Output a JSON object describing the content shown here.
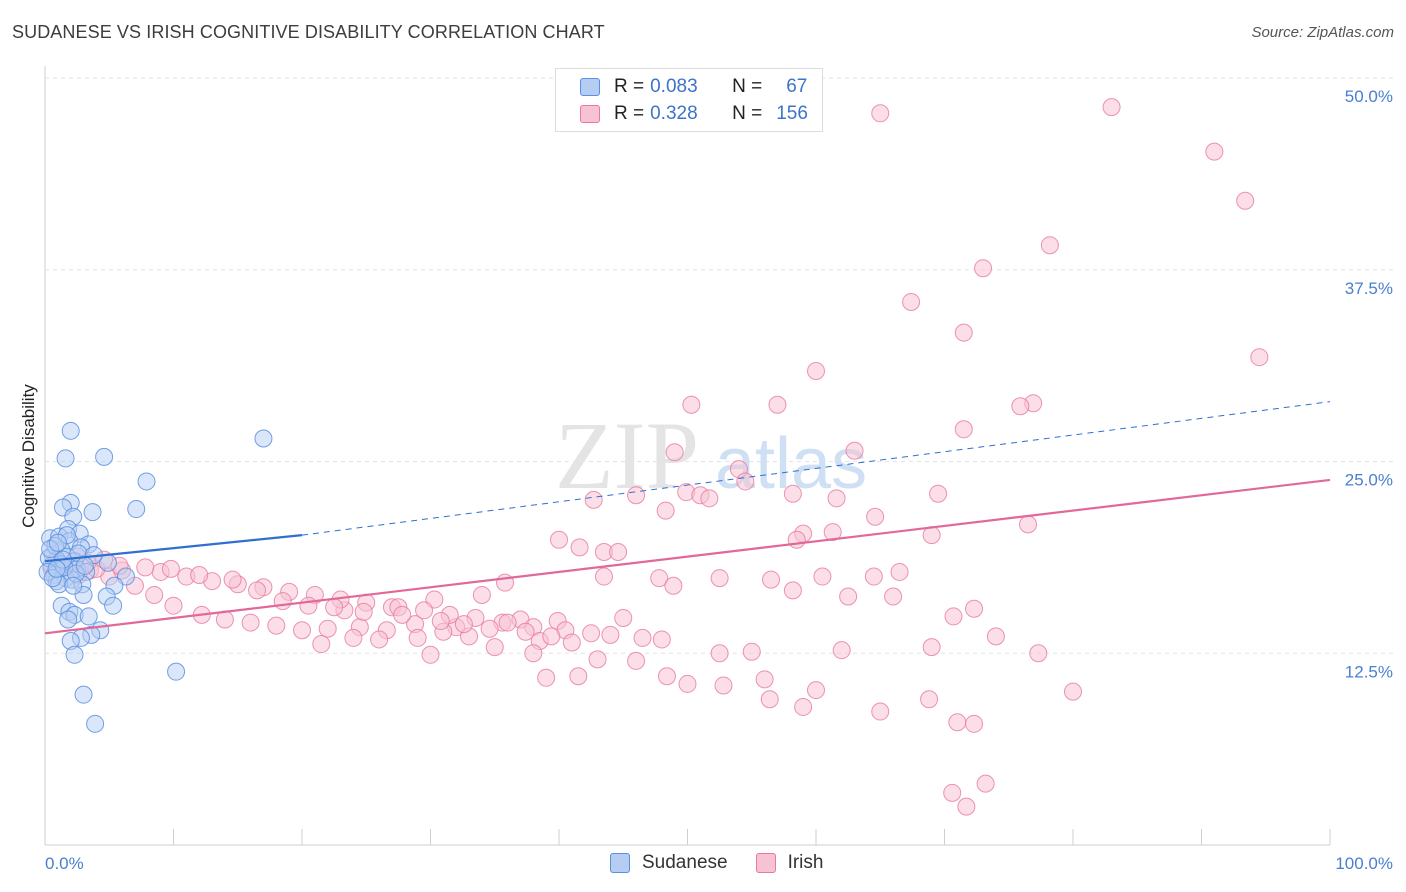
{
  "title": "SUDANESE VS IRISH COGNITIVE DISABILITY CORRELATION CHART",
  "source": "Source: ZipAtlas.com",
  "watermark": {
    "zip": "ZIP",
    "atlas": "atlas"
  },
  "legend": {
    "rows": [
      {
        "r_label": "R =",
        "r_value": "0.083",
        "n_label": "N =",
        "n_value": "67"
      },
      {
        "r_label": "R =",
        "r_value": "0.328",
        "n_label": "N =",
        "n_value": "156"
      }
    ]
  },
  "bottom_legend": {
    "sudanese": "Sudanese",
    "irish": "Irish"
  },
  "colors": {
    "sudanese": "#5b8fe0",
    "sudanese_fill": "#b5cdf3",
    "irish": "#e8799f",
    "irish_fill": "#f7c3d3",
    "sudanese_line": "#2f6fd0",
    "irish_line": "#e0699a"
  },
  "chart_data": {
    "type": "scatter",
    "ylabel": "Cognitive Disability",
    "xlabel": "",
    "xlim": [
      0,
      100
    ],
    "ylim": [
      0,
      50
    ],
    "x_tick_labels": [
      "0.0%",
      "100.0%"
    ],
    "y_ticks": [
      12.5,
      25.0,
      37.5,
      50.0
    ],
    "y_tick_labels": [
      "12.5%",
      "25.0%",
      "37.5%",
      "50.0%"
    ],
    "series": [
      {
        "name": "Sudanese",
        "r": 0.083,
        "n": 67,
        "trend": {
          "x0": 0,
          "y0": 18.5,
          "x1": 20,
          "y1": 20.2,
          "dashed_to_x": 100,
          "dashed_to_y": 28.9
        },
        "points": [
          [
            2.0,
            27.0
          ],
          [
            1.6,
            25.2
          ],
          [
            4.6,
            25.3
          ],
          [
            17.0,
            26.5
          ],
          [
            7.9,
            23.7
          ],
          [
            2.0,
            22.3
          ],
          [
            1.4,
            22.0
          ],
          [
            3.7,
            21.7
          ],
          [
            7.1,
            21.9
          ],
          [
            2.2,
            21.4
          ],
          [
            1.8,
            20.6
          ],
          [
            2.7,
            20.3
          ],
          [
            0.4,
            20.0
          ],
          [
            1.1,
            20.1
          ],
          [
            1.9,
            19.8
          ],
          [
            3.4,
            19.6
          ],
          [
            2.8,
            19.4
          ],
          [
            1.3,
            19.2
          ],
          [
            0.6,
            18.9
          ],
          [
            1.7,
            18.8
          ],
          [
            0.9,
            18.6
          ],
          [
            2.3,
            18.5
          ],
          [
            4.9,
            18.4
          ],
          [
            1.2,
            18.3
          ],
          [
            0.5,
            18.2
          ],
          [
            2.5,
            18.0
          ],
          [
            1.0,
            17.9
          ],
          [
            3.2,
            17.8
          ],
          [
            0.7,
            17.6
          ],
          [
            1.6,
            17.4
          ],
          [
            6.3,
            17.5
          ],
          [
            2.1,
            17.3
          ],
          [
            0.9,
            17.2
          ],
          [
            2.9,
            17.0
          ],
          [
            5.4,
            16.9
          ],
          [
            3.0,
            16.3
          ],
          [
            4.8,
            16.2
          ],
          [
            5.3,
            15.6
          ],
          [
            1.3,
            15.6
          ],
          [
            1.9,
            15.2
          ],
          [
            2.3,
            15.0
          ],
          [
            3.4,
            14.9
          ],
          [
            1.8,
            14.7
          ],
          [
            4.3,
            14.0
          ],
          [
            3.6,
            13.7
          ],
          [
            2.8,
            13.5
          ],
          [
            2.0,
            13.3
          ],
          [
            2.3,
            12.4
          ],
          [
            10.2,
            11.3
          ],
          [
            3.0,
            9.8
          ],
          [
            3.9,
            7.9
          ],
          [
            0.3,
            18.7
          ],
          [
            0.8,
            19.5
          ],
          [
            1.5,
            18.1
          ],
          [
            2.6,
            19.0
          ],
          [
            0.2,
            17.8
          ],
          [
            1.1,
            17.0
          ],
          [
            3.8,
            18.9
          ],
          [
            0.4,
            19.3
          ],
          [
            2.4,
            17.7
          ],
          [
            1.7,
            20.2
          ],
          [
            0.6,
            17.4
          ],
          [
            3.1,
            18.2
          ],
          [
            1.4,
            18.6
          ],
          [
            0.9,
            18.0
          ],
          [
            2.2,
            16.9
          ],
          [
            1.0,
            19.7
          ]
        ]
      },
      {
        "name": "Irish",
        "r": 0.328,
        "n": 156,
        "trend": {
          "x0": 0,
          "y0": 13.8,
          "x1": 100,
          "y1": 23.8
        },
        "points": [
          [
            83.0,
            48.1
          ],
          [
            65.0,
            47.7
          ],
          [
            91.0,
            45.2
          ],
          [
            93.4,
            42.0
          ],
          [
            78.2,
            39.1
          ],
          [
            73.0,
            37.6
          ],
          [
            67.4,
            35.4
          ],
          [
            71.5,
            33.4
          ],
          [
            94.5,
            31.8
          ],
          [
            60.0,
            30.9
          ],
          [
            50.3,
            28.7
          ],
          [
            57.0,
            28.7
          ],
          [
            76.9,
            28.8
          ],
          [
            75.9,
            28.6
          ],
          [
            71.5,
            27.1
          ],
          [
            49.0,
            25.6
          ],
          [
            63.0,
            25.7
          ],
          [
            54.0,
            24.5
          ],
          [
            54.5,
            23.7
          ],
          [
            49.9,
            23.0
          ],
          [
            51.0,
            22.8
          ],
          [
            58.2,
            22.9
          ],
          [
            69.5,
            22.9
          ],
          [
            46.0,
            22.8
          ],
          [
            61.6,
            22.6
          ],
          [
            51.7,
            22.6
          ],
          [
            42.7,
            22.5
          ],
          [
            48.3,
            21.8
          ],
          [
            64.6,
            21.4
          ],
          [
            59.0,
            20.3
          ],
          [
            61.3,
            20.4
          ],
          [
            69.0,
            20.2
          ],
          [
            76.5,
            20.9
          ],
          [
            58.5,
            19.9
          ],
          [
            43.5,
            19.1
          ],
          [
            41.6,
            19.4
          ],
          [
            44.6,
            19.1
          ],
          [
            40.0,
            19.9
          ],
          [
            66.5,
            17.8
          ],
          [
            43.5,
            17.5
          ],
          [
            35.8,
            17.1
          ],
          [
            47.8,
            17.4
          ],
          [
            52.5,
            17.4
          ],
          [
            56.5,
            17.3
          ],
          [
            60.5,
            17.5
          ],
          [
            64.5,
            17.5
          ],
          [
            48.9,
            16.9
          ],
          [
            58.2,
            16.6
          ],
          [
            62.5,
            16.2
          ],
          [
            66.0,
            16.2
          ],
          [
            34.0,
            16.3
          ],
          [
            30.3,
            16.0
          ],
          [
            27.0,
            15.5
          ],
          [
            23.3,
            15.3
          ],
          [
            72.3,
            15.4
          ],
          [
            70.7,
            14.9
          ],
          [
            45.0,
            14.8
          ],
          [
            39.9,
            14.6
          ],
          [
            37.0,
            14.7
          ],
          [
            35.6,
            14.5
          ],
          [
            32.0,
            14.2
          ],
          [
            28.8,
            14.4
          ],
          [
            26.6,
            14.0
          ],
          [
            24.5,
            14.2
          ],
          [
            22.0,
            14.1
          ],
          [
            20.0,
            14.0
          ],
          [
            18.0,
            14.3
          ],
          [
            16.0,
            14.5
          ],
          [
            14.0,
            14.7
          ],
          [
            12.2,
            15.0
          ],
          [
            10.0,
            15.6
          ],
          [
            8.5,
            16.3
          ],
          [
            7.0,
            16.9
          ],
          [
            5.0,
            17.5
          ],
          [
            3.5,
            17.9
          ],
          [
            2.0,
            18.2
          ],
          [
            1.0,
            18.5
          ],
          [
            2.6,
            17.6
          ],
          [
            4.0,
            18.0
          ],
          [
            6.0,
            17.9
          ],
          [
            9.0,
            17.8
          ],
          [
            11.0,
            17.5
          ],
          [
            13.0,
            17.2
          ],
          [
            15.0,
            17.0
          ],
          [
            17.0,
            16.8
          ],
          [
            19.0,
            16.5
          ],
          [
            21.0,
            16.3
          ],
          [
            23.0,
            16.0
          ],
          [
            25.0,
            15.8
          ],
          [
            27.5,
            15.5
          ],
          [
            29.5,
            15.3
          ],
          [
            31.5,
            15.0
          ],
          [
            33.5,
            14.8
          ],
          [
            36.0,
            14.5
          ],
          [
            38.0,
            14.2
          ],
          [
            40.5,
            14.0
          ],
          [
            42.5,
            13.8
          ],
          [
            44.0,
            13.7
          ],
          [
            46.5,
            13.5
          ],
          [
            48.0,
            13.4
          ],
          [
            38.5,
            13.3
          ],
          [
            41.0,
            13.2
          ],
          [
            33.0,
            13.6
          ],
          [
            31.0,
            13.9
          ],
          [
            26.0,
            13.4
          ],
          [
            24.0,
            13.5
          ],
          [
            29.0,
            13.5
          ],
          [
            35.0,
            12.9
          ],
          [
            30.0,
            12.4
          ],
          [
            38.0,
            12.5
          ],
          [
            21.5,
            13.1
          ],
          [
            46.0,
            12.0
          ],
          [
            43.0,
            12.1
          ],
          [
            52.5,
            12.5
          ],
          [
            55.0,
            12.6
          ],
          [
            62.0,
            12.7
          ],
          [
            69.0,
            12.9
          ],
          [
            77.3,
            12.5
          ],
          [
            74.0,
            13.6
          ],
          [
            48.4,
            11.0
          ],
          [
            52.8,
            10.4
          ],
          [
            50.0,
            10.5
          ],
          [
            60.0,
            10.1
          ],
          [
            56.0,
            10.8
          ],
          [
            39.0,
            10.9
          ],
          [
            41.5,
            11.0
          ],
          [
            80.0,
            10.0
          ],
          [
            68.8,
            9.5
          ],
          [
            56.4,
            9.5
          ],
          [
            59.0,
            9.0
          ],
          [
            65.0,
            8.7
          ],
          [
            71.0,
            8.0
          ],
          [
            72.3,
            7.9
          ],
          [
            73.2,
            4.0
          ],
          [
            71.7,
            2.5
          ],
          [
            70.6,
            3.4
          ],
          [
            2.5,
            18.8
          ],
          [
            3.3,
            18.4
          ],
          [
            4.6,
            18.6
          ],
          [
            5.8,
            18.2
          ],
          [
            7.8,
            18.1
          ],
          [
            9.8,
            18.0
          ],
          [
            12.0,
            17.6
          ],
          [
            14.6,
            17.3
          ],
          [
            16.5,
            16.6
          ],
          [
            18.5,
            15.9
          ],
          [
            20.5,
            15.6
          ],
          [
            22.5,
            15.5
          ],
          [
            24.8,
            15.2
          ],
          [
            27.8,
            15.0
          ],
          [
            30.8,
            14.6
          ],
          [
            32.6,
            14.4
          ],
          [
            34.6,
            14.1
          ],
          [
            37.4,
            13.9
          ],
          [
            39.4,
            13.6
          ],
          [
            0.5,
            18.0
          ]
        ]
      }
    ]
  }
}
